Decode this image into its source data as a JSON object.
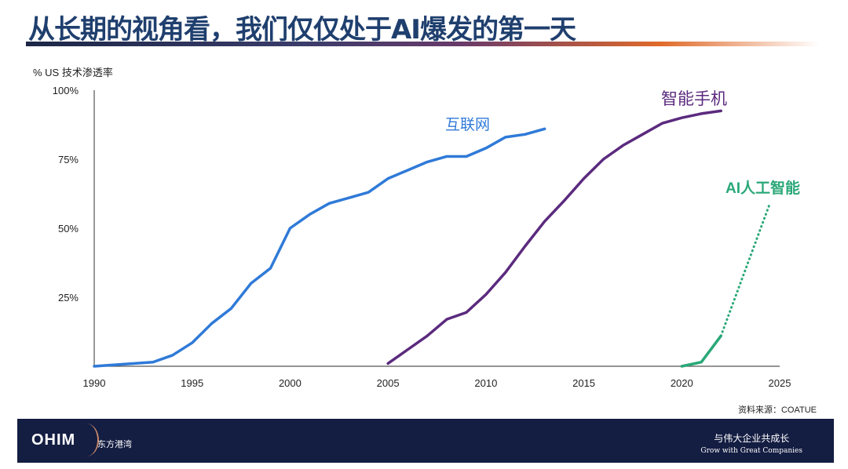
{
  "header": {
    "title": "从长期的视角看，我们仅仅处于AI爆发的第一天"
  },
  "source": "资料来源：COATUE",
  "footer": {
    "logo": "OHIM",
    "logo_cn": "东方港湾",
    "slogan_cn": "与伟大企业共成长",
    "slogan_en": "Grow with Great Companies"
  },
  "chart_data": {
    "type": "line",
    "ylabel": "% US 技术渗透率",
    "xlim": [
      1990,
      2025
    ],
    "ylim": [
      0,
      100
    ],
    "x_ticks": [
      "1990",
      "1995",
      "2000",
      "2005",
      "2010",
      "2015",
      "2020",
      "2025"
    ],
    "y_ticks": [
      "25%",
      "50%",
      "75%",
      "100%"
    ],
    "grid": false,
    "series": [
      {
        "name": "互联网",
        "color": "#2f7ad8",
        "style": "solid",
        "x": [
          1990,
          1993,
          1994,
          1995,
          1996,
          1997,
          1998,
          1999,
          2000,
          2001,
          2002,
          2003,
          2004,
          2005,
          2006,
          2007,
          2008,
          2009,
          2010,
          2011,
          2012,
          2013
        ],
        "y": [
          0,
          1.5,
          4,
          8.5,
          15.5,
          21,
          30,
          35.5,
          50,
          55,
          59,
          61,
          63,
          68,
          71,
          74,
          76,
          76,
          79,
          83,
          84,
          86
        ]
      },
      {
        "name": "智能手机",
        "color": "#5b2a7e",
        "style": "solid",
        "x": [
          2005,
          2006,
          2007,
          2008,
          2009,
          2010,
          2011,
          2012,
          2013,
          2014,
          2015,
          2016,
          2017,
          2018,
          2019,
          2020,
          2021,
          2022
        ],
        "y": [
          1,
          6,
          11,
          17,
          19.5,
          26,
          34,
          43.5,
          52.5,
          60,
          68,
          75,
          80,
          84,
          88,
          90,
          91.5,
          92.5
        ]
      },
      {
        "name": "AI人工智能",
        "color": "#2aa878",
        "style": "solid",
        "x": [
          2020,
          2021,
          2022
        ],
        "y": [
          0,
          1.5,
          11
        ]
      },
      {
        "name": "",
        "color": "#2aa878",
        "style": "dotted",
        "x": [
          2022,
          2024.5
        ],
        "y": [
          11,
          59
        ]
      }
    ]
  }
}
